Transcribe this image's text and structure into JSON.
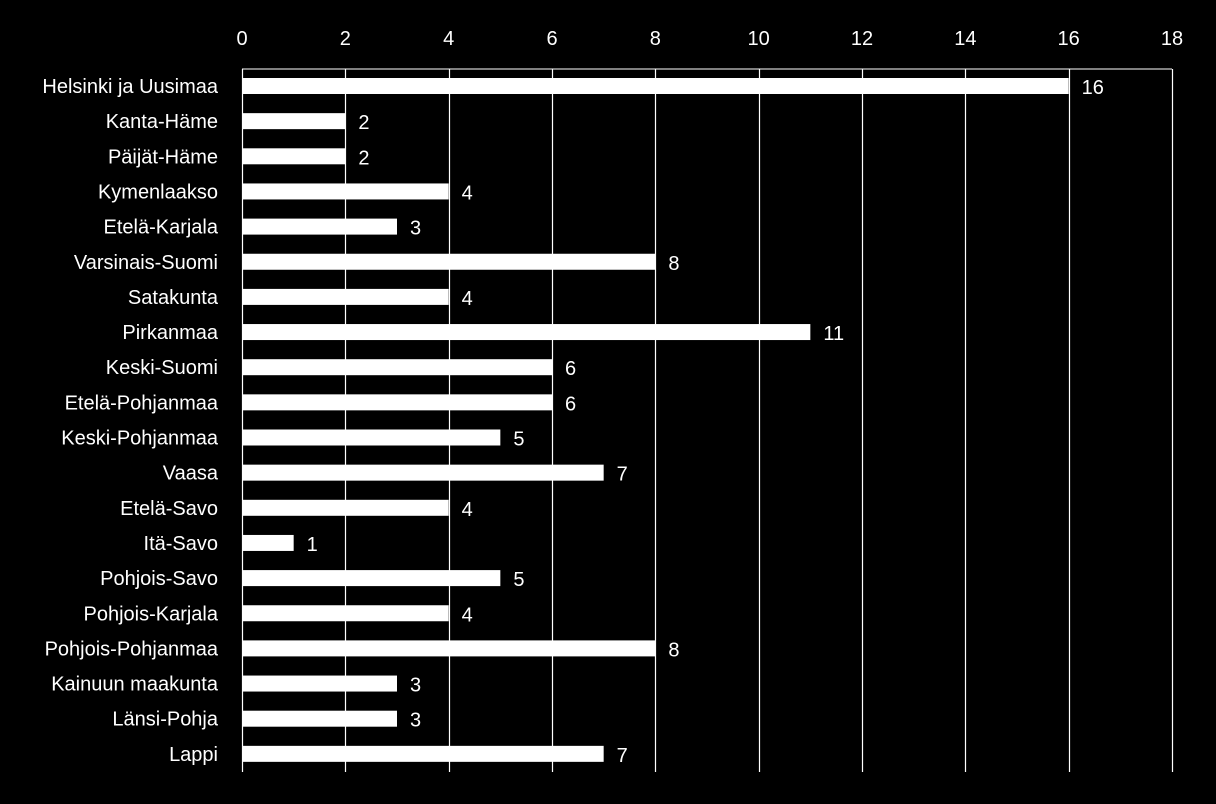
{
  "colors": {
    "background": "#000000",
    "bar": "#ffffff",
    "text": "#ffffff",
    "grid": "#ffffff"
  },
  "chart_data": {
    "type": "bar",
    "orientation": "horizontal",
    "title": "",
    "xlabel": "",
    "ylabel": "",
    "xlim": [
      0,
      18
    ],
    "x_ticks": [
      0,
      2,
      4,
      6,
      8,
      10,
      12,
      14,
      16,
      18
    ],
    "x_axis_position": "top",
    "grid": true,
    "legend": "none",
    "categories": [
      "Helsinki ja Uusimaa",
      "Kanta-Häme",
      "Päijät-Häme",
      "Kymenlaakso",
      "Etelä-Karjala",
      "Varsinais-Suomi",
      "Satakunta",
      "Pirkanmaa",
      "Keski-Suomi",
      "Etelä-Pohjanmaa",
      "Keski-Pohjanmaa",
      "Vaasa",
      "Etelä-Savo",
      "Itä-Savo",
      "Pohjois-Savo",
      "Pohjois-Karjala",
      "Pohjois-Pohjanmaa",
      "Kainuun maakunta",
      "Länsi-Pohja",
      "Lappi"
    ],
    "values": [
      16,
      2,
      2,
      4,
      3,
      8,
      4,
      11,
      6,
      6,
      5,
      7,
      4,
      1,
      5,
      4,
      8,
      3,
      3,
      7
    ]
  }
}
